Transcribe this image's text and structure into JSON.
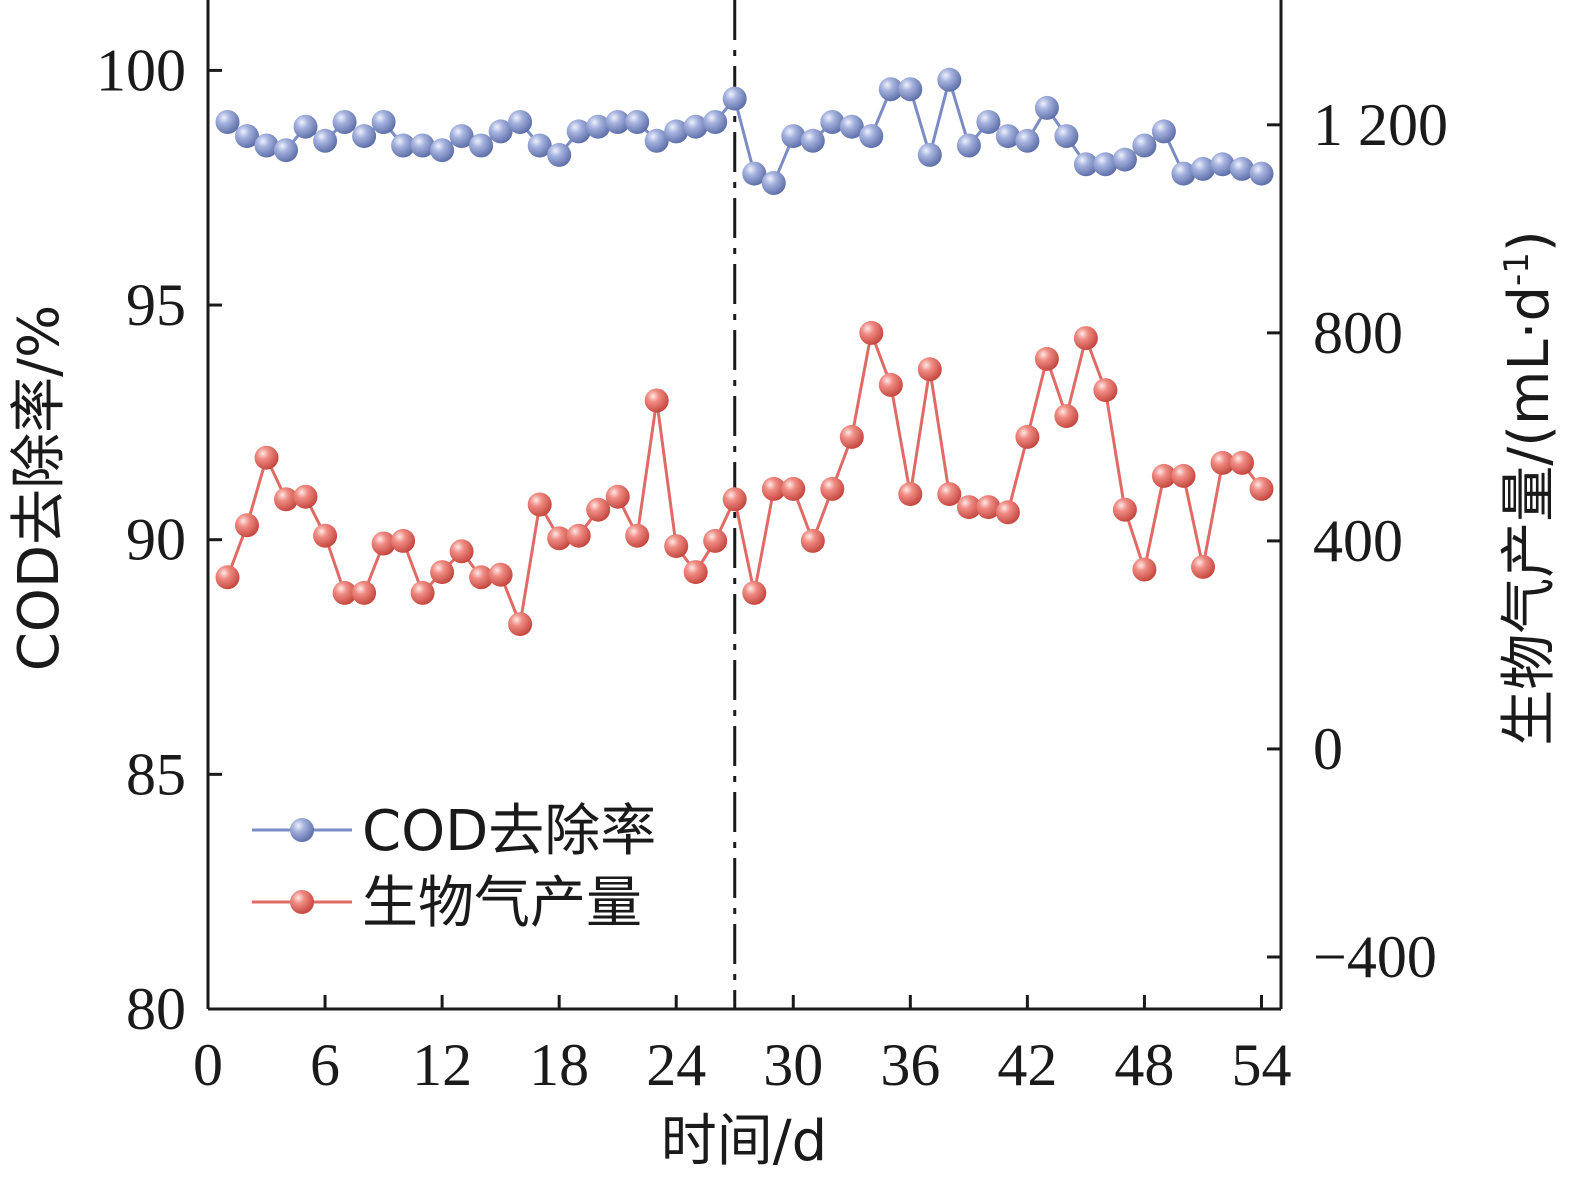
{
  "chart_data": {
    "type": "line",
    "xlabel": "时间/d",
    "ylabel_left": "COD去除率/%",
    "ylabel_right_main": "生物气产量/(mL·d",
    "ylabel_right_sup": "-1",
    "ylabel_right_close": ")",
    "xlim": [
      0,
      55
    ],
    "xticks": [
      0,
      6,
      12,
      18,
      24,
      30,
      36,
      42,
      48,
      54
    ],
    "xtick_labels": [
      "0",
      "6",
      "12",
      "18",
      "24",
      "30",
      "36",
      "42",
      "48",
      "54"
    ],
    "ylim_left": [
      80,
      101.5
    ],
    "yticks_left": [
      80,
      85,
      90,
      95,
      100
    ],
    "ytick_labels_left": [
      "80",
      "85",
      "90",
      "95",
      "100"
    ],
    "ylim_right": [
      -500,
      1440
    ],
    "yticks_right": [
      -400,
      0,
      400,
      800,
      1200
    ],
    "ytick_labels_right": [
      "−400",
      "0",
      "400",
      "800",
      "1 200"
    ],
    "divider_x": 27,
    "legend_position": "lower-left",
    "series": [
      {
        "name": "COD去除率",
        "axis": "left",
        "color": "#7b8cc4",
        "x": [
          1,
          2,
          3,
          4,
          5,
          6,
          7,
          8,
          9,
          10,
          11,
          12,
          13,
          14,
          15,
          16,
          17,
          18,
          19,
          20,
          21,
          22,
          23,
          24,
          25,
          26,
          27,
          28,
          29,
          30,
          31,
          32,
          33,
          34,
          35,
          36,
          37,
          38,
          39,
          40,
          41,
          42,
          43,
          44,
          45,
          46,
          47,
          48,
          49,
          50,
          51,
          52,
          53,
          54
        ],
        "values": [
          98.9,
          98.6,
          98.4,
          98.3,
          98.8,
          98.5,
          98.9,
          98.6,
          98.9,
          98.4,
          98.4,
          98.3,
          98.6,
          98.4,
          98.7,
          98.9,
          98.4,
          98.2,
          98.7,
          98.8,
          98.9,
          98.9,
          98.5,
          98.7,
          98.8,
          98.9,
          99.4,
          97.8,
          97.6,
          98.6,
          98.5,
          98.9,
          98.8,
          98.6,
          99.6,
          99.6,
          98.2,
          99.8,
          98.4,
          98.9,
          98.6,
          98.5,
          99.2,
          98.6,
          98.0,
          98.0,
          98.1,
          98.4,
          98.7,
          97.8,
          97.9,
          98.0,
          97.9,
          97.8
        ]
      },
      {
        "name": "生物气产量",
        "axis": "right",
        "color": "#e06b66",
        "x": [
          1,
          2,
          3,
          4,
          5,
          6,
          7,
          8,
          9,
          10,
          11,
          12,
          13,
          14,
          15,
          16,
          17,
          18,
          19,
          20,
          21,
          22,
          23,
          24,
          25,
          26,
          27,
          28,
          29,
          30,
          31,
          32,
          33,
          34,
          35,
          36,
          37,
          38,
          39,
          40,
          41,
          42,
          43,
          44,
          45,
          46,
          47,
          48,
          49,
          50,
          51,
          52,
          53,
          54
        ],
        "values": [
          330,
          430,
          560,
          480,
          485,
          410,
          300,
          300,
          395,
          400,
          300,
          340,
          380,
          330,
          335,
          240,
          470,
          405,
          410,
          460,
          485,
          410,
          670,
          390,
          340,
          400,
          480,
          300,
          500,
          500,
          400,
          500,
          600,
          800,
          700,
          490,
          730,
          490,
          465,
          465,
          455,
          600,
          750,
          640,
          790,
          690,
          460,
          345,
          525,
          525,
          350,
          550,
          550,
          500
        ]
      }
    ]
  }
}
